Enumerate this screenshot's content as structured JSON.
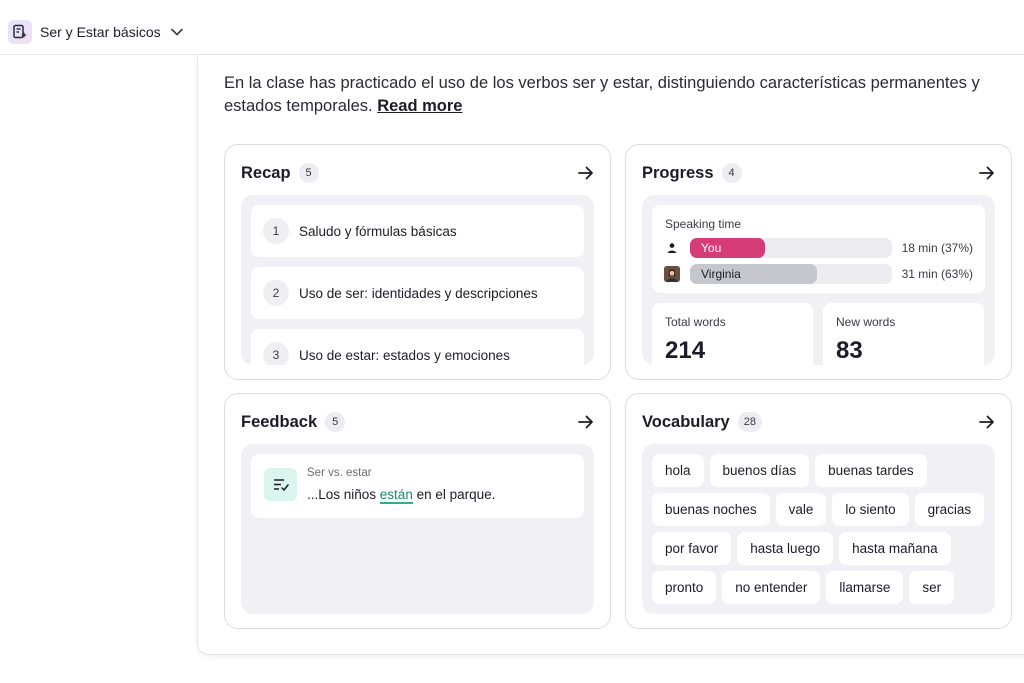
{
  "header": {
    "lesson_icon": "lesson-sparkle-icon",
    "lesson_title": "Ser y Estar básicos"
  },
  "summary": {
    "text": "En la clase has practicado el uso de los verbos ser y estar, distinguiendo características permanentes y estados temporales.",
    "read_more": "Read more"
  },
  "recap": {
    "title": "Recap",
    "count": "5",
    "items": [
      {
        "num": "1",
        "label": "Saludo y fórmulas básicas"
      },
      {
        "num": "2",
        "label": "Uso de ser: identidades y descripciones"
      },
      {
        "num": "3",
        "label": "Uso de estar: estados y emociones"
      }
    ]
  },
  "progress": {
    "title": "Progress",
    "count": "4",
    "speaking_time_label": "Speaking time",
    "speakers": [
      {
        "name": "You",
        "time": "18 min (37%)",
        "share": 0.37,
        "color": "#d63d78",
        "text_color": "#ffffff",
        "icon": "person-icon"
      },
      {
        "name": "Virginia",
        "time": "31 min (63%)",
        "share": 0.63,
        "color": "#c6c6ce",
        "text_color": "#1c1c28",
        "icon": "avatar-icon"
      }
    ],
    "total_words_label": "Total words",
    "total_words": "214",
    "new_words_label": "New words",
    "new_words": "83"
  },
  "feedback": {
    "title": "Feedback",
    "count": "5",
    "item": {
      "category": "Ser vs. estar",
      "prefix": "...Los niños ",
      "highlight": "están",
      "suffix": " en el parque.",
      "icon": "checklist-icon"
    }
  },
  "vocabulary": {
    "title": "Vocabulary",
    "count": "28",
    "words": [
      "hola",
      "buenos días",
      "buenas tardes",
      "buenas noches",
      "vale",
      "lo siento",
      "gracias",
      "por favor",
      "hasta luego",
      "hasta mañana",
      "pronto",
      "no entender",
      "llamarse",
      "ser"
    ]
  }
}
